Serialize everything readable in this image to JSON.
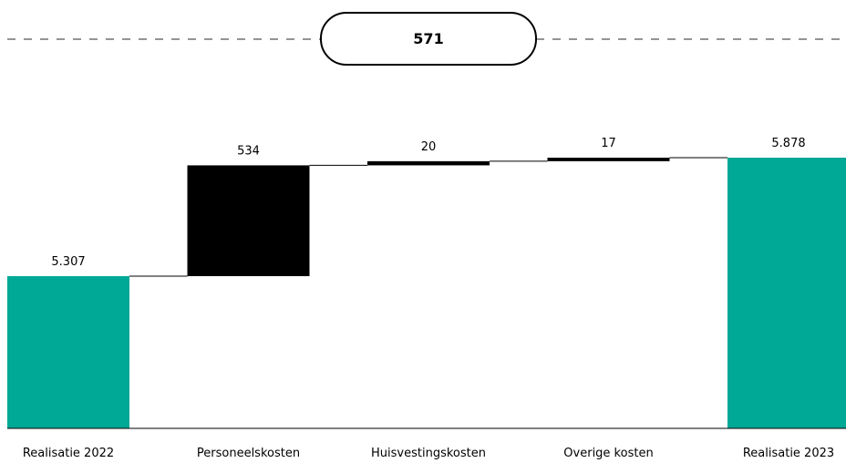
{
  "chart_data": {
    "type": "bar",
    "subtype": "waterfall",
    "total_change": "571",
    "categories": [
      "Realisatie 2022",
      "Personeelskosten",
      "Huisvestingskosten",
      "Overige kosten",
      "Realisatie 2023"
    ],
    "bars": [
      {
        "category": "Realisatie 2022",
        "kind": "total",
        "value": 5307,
        "label": "5.307"
      },
      {
        "category": "Personeelskosten",
        "kind": "delta",
        "value": 534,
        "label": "534"
      },
      {
        "category": "Huisvestingskosten",
        "kind": "delta",
        "value": 20,
        "label": "20"
      },
      {
        "category": "Overige kosten",
        "kind": "delta",
        "value": 17,
        "label": "17"
      },
      {
        "category": "Realisatie 2023",
        "kind": "total",
        "value": 5878,
        "label": "5.878"
      }
    ],
    "colors": {
      "total": "#00a896",
      "delta": "#000000",
      "connector": "#000000",
      "dash": "#555555"
    }
  }
}
